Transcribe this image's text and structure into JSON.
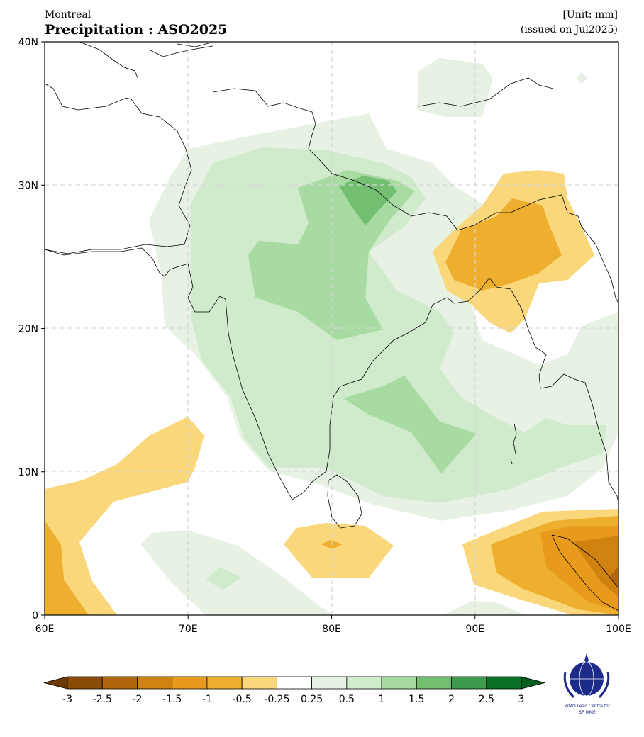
{
  "header": {
    "model": "Montreal",
    "title": "Precipitation : ASO2025",
    "unit": "[Unit: mm]",
    "issued": "(issued on Jul2025)"
  },
  "map": {
    "lon_range": [
      60,
      100
    ],
    "lat_range": [
      0,
      40
    ],
    "x_ticks": [
      {
        "value": 60,
        "label": "60E"
      },
      {
        "value": 70,
        "label": "70E"
      },
      {
        "value": 80,
        "label": "80E"
      },
      {
        "value": 90,
        "label": "90E"
      },
      {
        "value": 100,
        "label": "100E"
      }
    ],
    "y_ticks": [
      {
        "value": 0,
        "label": "0"
      },
      {
        "value": 10,
        "label": "10N"
      },
      {
        "value": 20,
        "label": "20N"
      },
      {
        "value": 30,
        "label": "30N"
      },
      {
        "value": 40,
        "label": "40N"
      }
    ],
    "grid": true,
    "grid_style": "dashed light gray"
  },
  "colorbar": {
    "labels": [
      "-3",
      "-2.5",
      "-2",
      "-1.5",
      "-1",
      "-0.5",
      "-0.25",
      "0.25",
      "0.5",
      "1",
      "1.5",
      "2",
      "2.5",
      "3"
    ],
    "colors": [
      "#8a4b06",
      "#b0660a",
      "#cf8210",
      "#e89a1c",
      "#eeae2e",
      "#f9d77a",
      "#ffffff",
      "#e7f2e5",
      "#cfebcc",
      "#a8dba1",
      "#72bf72",
      "#3d9a4e",
      "#087126"
    ],
    "under_color": "#6b3a04",
    "over_color": "#05601f"
  },
  "logo": {
    "caption_line1": "WMO Lead Centre for",
    "caption_line2": "SP MME"
  }
}
